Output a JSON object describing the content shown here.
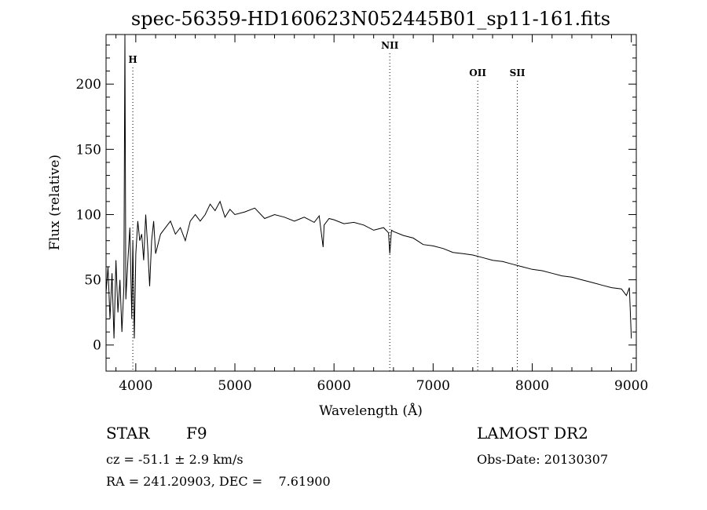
{
  "chart_data": {
    "type": "line",
    "title": "spec-56359-HD160623N052445B01_sp11-161.fits",
    "xlabel": "Wavelength (Å)",
    "ylabel": "Flux (relative)",
    "xlim": [
      3700,
      9050
    ],
    "ylim": [
      -20,
      238
    ],
    "xticks": [
      4000,
      5000,
      6000,
      7000,
      8000,
      9000
    ],
    "yticks": [
      0,
      50,
      100,
      150,
      200
    ],
    "grid": false,
    "series": [
      {
        "x": [
          3700,
          3720,
          3740,
          3760,
          3780,
          3800,
          3820,
          3840,
          3860,
          3880,
          3890,
          3900,
          3920,
          3940,
          3960,
          3970,
          3985,
          4000,
          4020,
          4040,
          4060,
          4080,
          4100,
          4120,
          4140,
          4160,
          4180,
          4200,
          4250,
          4300,
          4350,
          4400,
          4450,
          4500,
          4550,
          4600,
          4650,
          4700,
          4750,
          4800,
          4850,
          4900,
          4950,
          5000,
          5100,
          5200,
          5300,
          5400,
          5500,
          5600,
          5700,
          5800,
          5850,
          5890,
          5900,
          5950,
          6000,
          6100,
          6200,
          6300,
          6400,
          6500,
          6550,
          6563,
          6580,
          6600,
          6700,
          6800,
          6900,
          7000,
          7100,
          7200,
          7300,
          7400,
          7500,
          7600,
          7700,
          7800,
          7900,
          8000,
          8100,
          8200,
          8300,
          8400,
          8500,
          8600,
          8700,
          8800,
          8900,
          8950,
          8980,
          9000
        ],
        "y": [
          40,
          60,
          20,
          55,
          5,
          65,
          25,
          50,
          10,
          45,
          240,
          35,
          65,
          90,
          20,
          80,
          5,
          70,
          95,
          80,
          85,
          65,
          100,
          75,
          45,
          80,
          95,
          70,
          85,
          90,
          95,
          85,
          90,
          80,
          95,
          100,
          95,
          100,
          108,
          103,
          110,
          98,
          104,
          100,
          102,
          105,
          97,
          100,
          98,
          95,
          98,
          94,
          99,
          75,
          92,
          97,
          96,
          93,
          94,
          92,
          88,
          90,
          86,
          70,
          88,
          87,
          84,
          82,
          77,
          76,
          74,
          71,
          70,
          69,
          67,
          65,
          64,
          62,
          60,
          58,
          57,
          55,
          53,
          52,
          50,
          48,
          46,
          44,
          43,
          38,
          44,
          5
        ]
      }
    ],
    "line_markers": [
      {
        "label": "H",
        "x": 3970
      },
      {
        "label": "NII",
        "x": 6563
      },
      {
        "label": "OII",
        "x": 7450
      },
      {
        "label": "SII",
        "x": 7850
      }
    ]
  },
  "info": {
    "object_class": "STAR",
    "subclass": "F9",
    "survey": "LAMOST DR2",
    "redshift": "cz = -51.1 ± 2.9 km/s",
    "obs_date": "Obs-Date: 20130307",
    "coords": "RA = 241.20903, DEC =    7.61900"
  }
}
